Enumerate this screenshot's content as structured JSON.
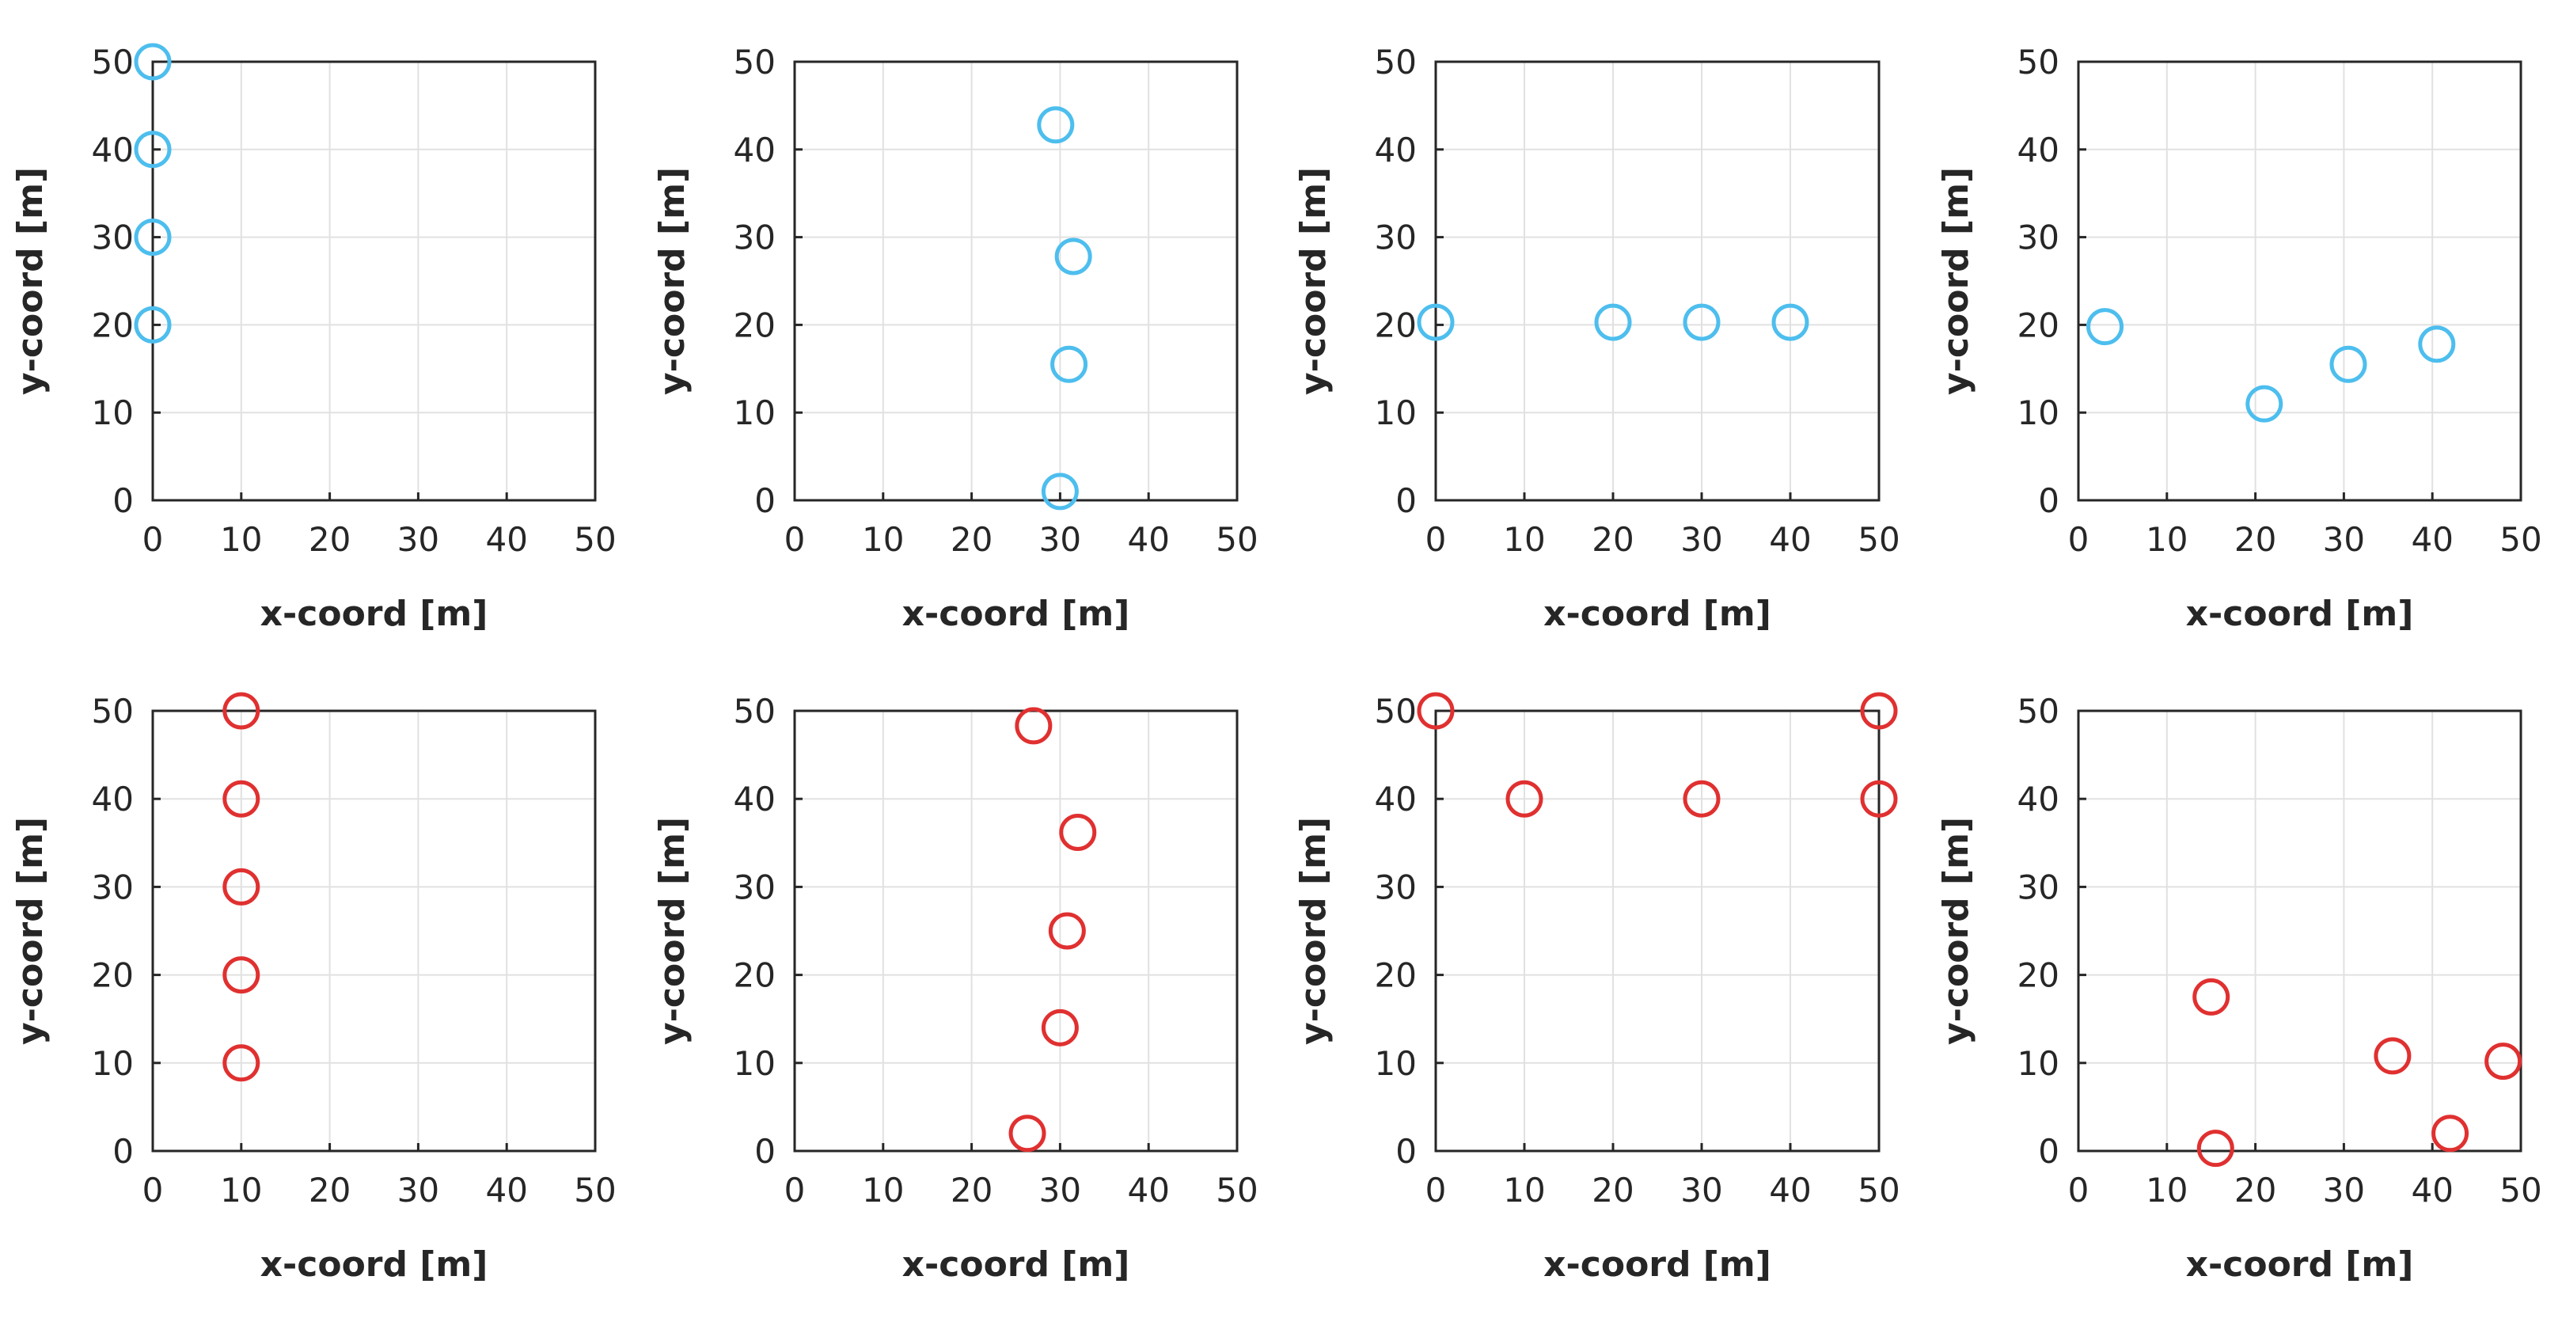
{
  "chart_data": [
    {
      "type": "scatter",
      "xlabel": "x-coord [m]",
      "ylabel": "y-coord [m]",
      "xlim": [
        0,
        50
      ],
      "ylim": [
        0,
        50
      ],
      "xticks": [
        0,
        10,
        20,
        30,
        40,
        50
      ],
      "yticks": [
        0,
        10,
        20,
        30,
        40,
        50
      ],
      "xtick_labels": [
        "0",
        "10",
        "20",
        "30",
        "40",
        "50"
      ],
      "ytick_labels": [
        "0",
        "10",
        "20",
        "30",
        "40",
        "50"
      ],
      "grid": true,
      "marker": "circle",
      "color": "#4DBEEE",
      "points": [
        {
          "x": 0,
          "y": 50
        },
        {
          "x": 0,
          "y": 40
        },
        {
          "x": 0,
          "y": 30
        },
        {
          "x": 0,
          "y": 20
        }
      ]
    },
    {
      "type": "scatter",
      "xlabel": "x-coord [m]",
      "ylabel": "y-coord [m]",
      "xlim": [
        0,
        50
      ],
      "ylim": [
        0,
        50
      ],
      "xticks": [
        0,
        10,
        20,
        30,
        40,
        50
      ],
      "yticks": [
        0,
        10,
        20,
        30,
        40,
        50
      ],
      "xtick_labels": [
        "0",
        "10",
        "20",
        "30",
        "40",
        "50"
      ],
      "ytick_labels": [
        "0",
        "10",
        "20",
        "30",
        "40",
        "50"
      ],
      "grid": true,
      "marker": "circle",
      "color": "#4DBEEE",
      "points": [
        {
          "x": 29.5,
          "y": 42.8
        },
        {
          "x": 31.5,
          "y": 27.8
        },
        {
          "x": 31,
          "y": 15.5
        },
        {
          "x": 30,
          "y": 1
        }
      ]
    },
    {
      "type": "scatter",
      "xlabel": "x-coord [m]",
      "ylabel": "y-coord [m]",
      "xlim": [
        0,
        50
      ],
      "ylim": [
        0,
        50
      ],
      "xticks": [
        0,
        10,
        20,
        30,
        40,
        50
      ],
      "yticks": [
        0,
        10,
        20,
        30,
        40,
        50
      ],
      "xtick_labels": [
        "0",
        "10",
        "20",
        "30",
        "40",
        "50"
      ],
      "ytick_labels": [
        "0",
        "10",
        "20",
        "30",
        "40",
        "50"
      ],
      "grid": true,
      "marker": "circle",
      "color": "#4DBEEE",
      "points": [
        {
          "x": 0,
          "y": 20.3
        },
        {
          "x": 20,
          "y": 20.3
        },
        {
          "x": 30,
          "y": 20.3
        },
        {
          "x": 40,
          "y": 20.3
        }
      ]
    },
    {
      "type": "scatter",
      "xlabel": "x-coord [m]",
      "ylabel": "y-coord [m]",
      "xlim": [
        0,
        50
      ],
      "ylim": [
        0,
        50
      ],
      "xticks": [
        0,
        10,
        20,
        30,
        40,
        50
      ],
      "yticks": [
        0,
        10,
        20,
        30,
        40,
        50
      ],
      "xtick_labels": [
        "0",
        "10",
        "20",
        "30",
        "40",
        "50"
      ],
      "ytick_labels": [
        "0",
        "10",
        "20",
        "30",
        "40",
        "50"
      ],
      "grid": true,
      "marker": "circle",
      "color": "#4DBEEE",
      "points": [
        {
          "x": 3,
          "y": 19.8
        },
        {
          "x": 21,
          "y": 11
        },
        {
          "x": 30.5,
          "y": 15.5
        },
        {
          "x": 40.5,
          "y": 17.8
        }
      ]
    },
    {
      "type": "scatter",
      "xlabel": "x-coord [m]",
      "ylabel": "y-coord [m]",
      "xlim": [
        0,
        50
      ],
      "ylim": [
        0,
        50
      ],
      "xticks": [
        0,
        10,
        20,
        30,
        40,
        50
      ],
      "yticks": [
        0,
        10,
        20,
        30,
        40,
        50
      ],
      "xtick_labels": [
        "0",
        "10",
        "20",
        "30",
        "40",
        "50"
      ],
      "ytick_labels": [
        "0",
        "10",
        "20",
        "30",
        "40",
        "50"
      ],
      "grid": true,
      "marker": "circle",
      "color": "#E03030",
      "points": [
        {
          "x": 10,
          "y": 50
        },
        {
          "x": 10,
          "y": 40
        },
        {
          "x": 10,
          "y": 30
        },
        {
          "x": 10,
          "y": 20
        },
        {
          "x": 10,
          "y": 10
        }
      ]
    },
    {
      "type": "scatter",
      "xlabel": "x-coord [m]",
      "ylabel": "y-coord [m]",
      "xlim": [
        0,
        50
      ],
      "ylim": [
        0,
        50
      ],
      "xticks": [
        0,
        10,
        20,
        30,
        40,
        50
      ],
      "yticks": [
        0,
        10,
        20,
        30,
        40,
        50
      ],
      "xtick_labels": [
        "0",
        "10",
        "20",
        "30",
        "40",
        "50"
      ],
      "ytick_labels": [
        "0",
        "10",
        "20",
        "30",
        "40",
        "50"
      ],
      "grid": true,
      "marker": "circle",
      "color": "#E03030",
      "points": [
        {
          "x": 27,
          "y": 48.3
        },
        {
          "x": 32,
          "y": 36.2
        },
        {
          "x": 30.8,
          "y": 25
        },
        {
          "x": 30,
          "y": 14
        },
        {
          "x": 26.3,
          "y": 2
        }
      ]
    },
    {
      "type": "scatter",
      "xlabel": "x-coord [m]",
      "ylabel": "y-coord [m]",
      "xlim": [
        0,
        50
      ],
      "ylim": [
        0,
        50
      ],
      "xticks": [
        0,
        10,
        20,
        30,
        40,
        50
      ],
      "yticks": [
        0,
        10,
        20,
        30,
        40,
        50
      ],
      "xtick_labels": [
        "0",
        "10",
        "20",
        "30",
        "40",
        "50"
      ],
      "ytick_labels": [
        "0",
        "10",
        "20",
        "30",
        "40",
        "50"
      ],
      "grid": true,
      "marker": "circle",
      "color": "#E03030",
      "points": [
        {
          "x": 0,
          "y": 50
        },
        {
          "x": 10,
          "y": 40
        },
        {
          "x": 30,
          "y": 40
        },
        {
          "x": 50,
          "y": 50
        },
        {
          "x": 50,
          "y": 40
        }
      ]
    },
    {
      "type": "scatter",
      "xlabel": "x-coord [m]",
      "ylabel": "y-coord [m]",
      "xlim": [
        0,
        50
      ],
      "ylim": [
        0,
        50
      ],
      "xticks": [
        0,
        10,
        20,
        30,
        40,
        50
      ],
      "yticks": [
        0,
        10,
        20,
        30,
        40,
        50
      ],
      "xtick_labels": [
        "0",
        "10",
        "20",
        "30",
        "40",
        "50"
      ],
      "ytick_labels": [
        "0",
        "10",
        "20",
        "30",
        "40",
        "50"
      ],
      "grid": true,
      "marker": "circle",
      "color": "#E03030",
      "points": [
        {
          "x": 15,
          "y": 17.5
        },
        {
          "x": 15.5,
          "y": 0.3
        },
        {
          "x": 35.5,
          "y": 10.8
        },
        {
          "x": 42,
          "y": 2
        },
        {
          "x": 48,
          "y": 10.2
        }
      ]
    }
  ]
}
